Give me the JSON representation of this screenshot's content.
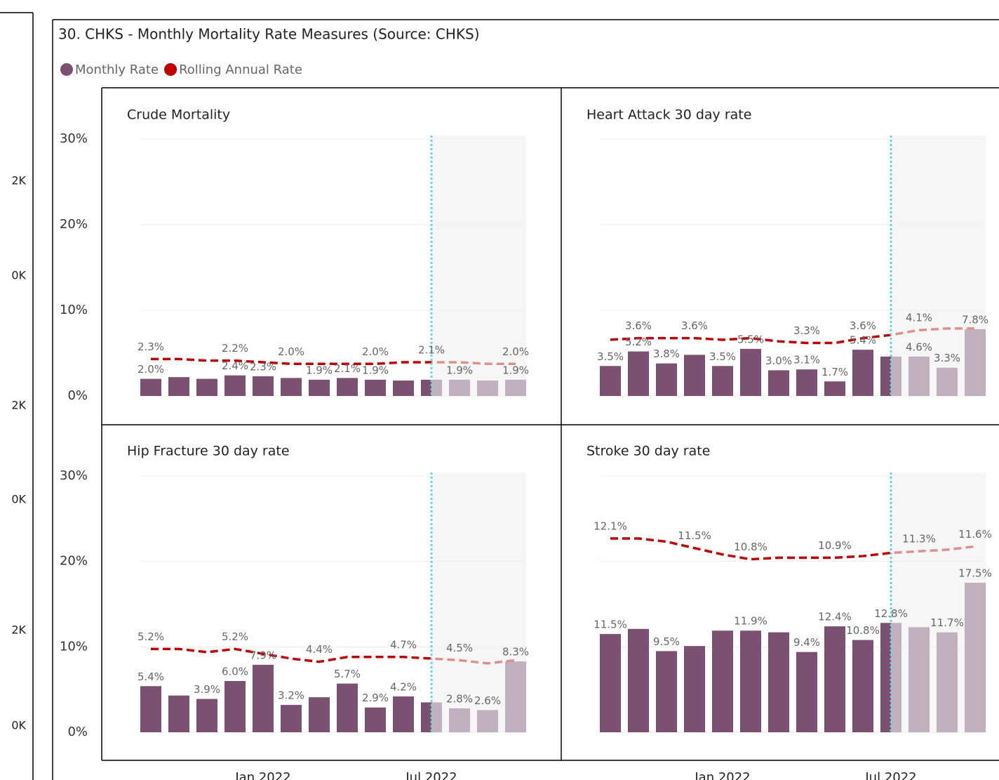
{
  "title": "30. CHKS - Monthly Mortality Rate Measures (Source: CHKS)",
  "side_axis_labels": [
    "2K",
    "0K",
    "2K",
    "0K",
    "2K",
    "0K"
  ],
  "chart_data": {
    "type": "bar_line",
    "categories": [
      null,
      null,
      null,
      null,
      "Jan 2022",
      null,
      null,
      null,
      null,
      null,
      "Jul 2022",
      null,
      null,
      null
    ],
    "ylim": [
      0,
      30
    ],
    "yticks": [
      {
        "value": 0,
        "label": "0%"
      },
      {
        "value": 10,
        "label": "10%"
      },
      {
        "value": 20,
        "label": "20%"
      },
      {
        "value": 30,
        "label": "30%"
      }
    ],
    "y2lim": [
      0,
      16
    ],
    "grid": true,
    "series": [
      {
        "name": "Monthly Rate",
        "color": "#7b5070"
      },
      {
        "name": "Rolling Annual Rate",
        "color": "#c00000",
        "axis": "y2"
      }
    ],
    "panels": [
      {
        "title": "Crude Mortality",
        "series": [
          {
            "values": [
              2.0,
              2.2,
              2.0,
              2.4,
              2.3,
              2.1,
              1.9,
              2.1,
              1.9,
              1.8,
              1.9,
              1.9,
              1.8,
              1.9
            ],
            "value_labels": [
              "2.0%",
              null,
              null,
              "2.4%",
              "2.3%",
              null,
              "1.9%",
              "2.1%",
              "1.9%",
              null,
              null,
              "1.9%",
              null,
              "1.9%"
            ]
          },
          {
            "values": [
              2.3,
              2.3,
              2.2,
              2.2,
              2.1,
              2.0,
              2.0,
              2.0,
              2.0,
              2.1,
              2.1,
              2.1,
              2.0,
              2.0
            ],
            "value_labels": [
              "2.3%",
              null,
              null,
              "2.2%",
              null,
              "2.0%",
              null,
              null,
              "2.0%",
              null,
              "2.1%",
              null,
              null,
              "2.0%"
            ]
          }
        ]
      },
      {
        "title": "Heart Attack 30 day rate",
        "series": [
          {
            "values": [
              3.5,
              5.2,
              3.8,
              4.8,
              3.5,
              5.5,
              3.0,
              3.1,
              1.7,
              5.4,
              4.6,
              4.6,
              3.3,
              7.8
            ],
            "value_labels": [
              "3.5%",
              "5.2%",
              "3.8%",
              null,
              "3.5%",
              "5.5%",
              "3.0%",
              "3.1%",
              "1.7%",
              "5.4%",
              null,
              "4.6%",
              "3.3%",
              "7.8%"
            ]
          },
          {
            "values": [
              3.5,
              3.6,
              3.6,
              3.6,
              3.5,
              3.6,
              3.4,
              3.3,
              3.3,
              3.6,
              3.8,
              4.1,
              4.2,
              4.2
            ],
            "value_labels": [
              null,
              "3.6%",
              null,
              "3.6%",
              null,
              null,
              null,
              "3.3%",
              null,
              "3.6%",
              null,
              "4.1%",
              null,
              null
            ]
          }
        ]
      },
      {
        "title": "Hip Fracture 30 day rate",
        "series": [
          {
            "values": [
              5.4,
              4.3,
              3.9,
              6.0,
              7.9,
              3.2,
              4.1,
              5.7,
              2.9,
              4.2,
              3.5,
              2.8,
              2.6,
              8.3
            ],
            "value_labels": [
              "5.4%",
              null,
              "3.9%",
              "6.0%",
              "7.9%",
              "3.2%",
              null,
              "5.7%",
              "2.9%",
              "4.2%",
              null,
              "2.8%",
              "2.6%",
              "8.3%"
            ]
          },
          {
            "values": [
              5.2,
              5.2,
              5.0,
              5.2,
              4.9,
              4.6,
              4.4,
              4.7,
              4.7,
              4.7,
              4.6,
              4.5,
              4.3,
              4.5
            ],
            "value_labels": [
              "5.2%",
              null,
              null,
              "5.2%",
              null,
              null,
              "4.4%",
              null,
              null,
              "4.7%",
              null,
              "4.5%",
              null,
              null
            ]
          }
        ]
      },
      {
        "title": "Stroke 30 day rate",
        "series": [
          {
            "values": [
              11.5,
              12.1,
              9.5,
              10.1,
              11.9,
              11.9,
              11.7,
              9.4,
              12.4,
              10.8,
              12.8,
              12.3,
              11.7,
              17.5
            ],
            "value_labels": [
              "11.5%",
              null,
              "9.5%",
              null,
              null,
              "11.9%",
              null,
              "9.4%",
              "12.4%",
              "10.8%",
              "12.8%",
              null,
              "11.7%",
              "17.5%"
            ]
          },
          {
            "values": [
              12.1,
              12.1,
              11.9,
              11.5,
              11.1,
              10.8,
              10.9,
              10.9,
              10.9,
              11.0,
              11.2,
              11.3,
              11.4,
              11.6
            ],
            "value_labels": [
              "12.1%",
              null,
              null,
              "11.5%",
              null,
              "10.8%",
              null,
              null,
              "10.9%",
              null,
              null,
              "11.3%",
              null,
              "11.6%"
            ]
          }
        ]
      }
    ]
  }
}
